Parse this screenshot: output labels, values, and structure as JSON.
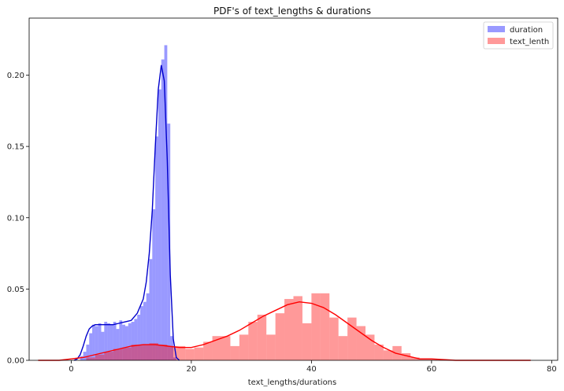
{
  "chart_data": {
    "type": "bar",
    "title": "PDF's of text_lengths & durations",
    "xlabel": "text_lengths/durations",
    "ylabel": "",
    "xlim": [
      -7,
      81
    ],
    "ylim": [
      0,
      0.24
    ],
    "xticks": [
      0,
      20,
      40,
      60,
      80
    ],
    "yticks": [
      0.0,
      0.05,
      0.1,
      0.15,
      0.2
    ],
    "grid": false,
    "legend_position": "top-right",
    "series": [
      {
        "name": "duration",
        "color": "#0000ff",
        "bar_opacity": 0.4,
        "bin_width": 0.5,
        "bins": [
          [
            1.5,
            0.003
          ],
          [
            2.0,
            0.006
          ],
          [
            2.5,
            0.011
          ],
          [
            3.0,
            0.019
          ],
          [
            3.5,
            0.025
          ],
          [
            4.0,
            0.024
          ],
          [
            4.5,
            0.026
          ],
          [
            5.0,
            0.02
          ],
          [
            5.5,
            0.027
          ],
          [
            6.0,
            0.026
          ],
          [
            6.5,
            0.025
          ],
          [
            7.0,
            0.027
          ],
          [
            7.5,
            0.022
          ],
          [
            8.0,
            0.028
          ],
          [
            8.5,
            0.025
          ],
          [
            9.0,
            0.024
          ],
          [
            9.5,
            0.026
          ],
          [
            10.0,
            0.027
          ],
          [
            10.5,
            0.029
          ],
          [
            11.0,
            0.032
          ],
          [
            11.5,
            0.038
          ],
          [
            12.0,
            0.041
          ],
          [
            12.5,
            0.047
          ],
          [
            13.0,
            0.071
          ],
          [
            13.5,
            0.106
          ],
          [
            14.0,
            0.157
          ],
          [
            14.5,
            0.19
          ],
          [
            15.0,
            0.211
          ],
          [
            15.5,
            0.221
          ],
          [
            16.0,
            0.166
          ],
          [
            16.5,
            0.017
          ],
          [
            17.0,
            0.002
          ]
        ],
        "kde": [
          [
            0.5,
            0.0
          ],
          [
            1.0,
            0.001
          ],
          [
            1.5,
            0.004
          ],
          [
            2.0,
            0.01
          ],
          [
            2.5,
            0.017
          ],
          [
            3.0,
            0.022
          ],
          [
            3.5,
            0.024
          ],
          [
            4.0,
            0.025
          ],
          [
            5.0,
            0.025
          ],
          [
            6.0,
            0.025
          ],
          [
            7.0,
            0.025
          ],
          [
            8.0,
            0.026
          ],
          [
            9.0,
            0.027
          ],
          [
            10.0,
            0.028
          ],
          [
            11.0,
            0.033
          ],
          [
            12.0,
            0.043
          ],
          [
            12.5,
            0.055
          ],
          [
            13.0,
            0.075
          ],
          [
            13.5,
            0.105
          ],
          [
            14.0,
            0.15
          ],
          [
            14.5,
            0.19
          ],
          [
            15.0,
            0.207
          ],
          [
            15.5,
            0.196
          ],
          [
            16.0,
            0.14
          ],
          [
            16.5,
            0.06
          ],
          [
            17.0,
            0.015
          ],
          [
            17.5,
            0.002
          ],
          [
            18.0,
            0.0
          ]
        ]
      },
      {
        "name": "text_lenth",
        "color": "#ff0000",
        "bar_opacity": 0.4,
        "bin_width": 1.5,
        "bins": [
          [
            2.5,
            0.002
          ],
          [
            4.0,
            0.004
          ],
          [
            5.5,
            0.006
          ],
          [
            7.0,
            0.008
          ],
          [
            8.5,
            0.009
          ],
          [
            10.0,
            0.011
          ],
          [
            11.5,
            0.011
          ],
          [
            13.0,
            0.012
          ],
          [
            14.5,
            0.011
          ],
          [
            16.0,
            0.01
          ],
          [
            17.5,
            0.01
          ],
          [
            19.0,
            0.008
          ],
          [
            20.5,
            0.009
          ],
          [
            22.0,
            0.013
          ],
          [
            23.5,
            0.017
          ],
          [
            25.0,
            0.017
          ],
          [
            26.5,
            0.01
          ],
          [
            28.0,
            0.018
          ],
          [
            29.5,
            0.027
          ],
          [
            31.0,
            0.032
          ],
          [
            32.5,
            0.018
          ],
          [
            34.0,
            0.033
          ],
          [
            35.5,
            0.043
          ],
          [
            37.0,
            0.045
          ],
          [
            38.5,
            0.026
          ],
          [
            40.0,
            0.047
          ],
          [
            41.5,
            0.047
          ],
          [
            43.0,
            0.03
          ],
          [
            44.5,
            0.017
          ],
          [
            46.0,
            0.03
          ],
          [
            47.5,
            0.024
          ],
          [
            49.0,
            0.018
          ],
          [
            50.5,
            0.011
          ],
          [
            52.0,
            0.007
          ],
          [
            53.5,
            0.01
          ],
          [
            55.0,
            0.005
          ],
          [
            56.5,
            0.002
          ],
          [
            58.0,
            0.001
          ],
          [
            59.5,
            0.001
          ]
        ],
        "kde": [
          [
            -5.5,
            0.0
          ],
          [
            -2.0,
            0.0
          ],
          [
            0.0,
            0.001
          ],
          [
            2.0,
            0.002
          ],
          [
            4.0,
            0.004
          ],
          [
            6.0,
            0.006
          ],
          [
            8.0,
            0.008
          ],
          [
            10.0,
            0.01
          ],
          [
            12.0,
            0.011
          ],
          [
            14.0,
            0.011
          ],
          [
            16.0,
            0.01
          ],
          [
            18.0,
            0.009
          ],
          [
            20.0,
            0.009
          ],
          [
            22.0,
            0.011
          ],
          [
            24.0,
            0.014
          ],
          [
            26.0,
            0.017
          ],
          [
            28.0,
            0.021
          ],
          [
            30.0,
            0.026
          ],
          [
            32.0,
            0.031
          ],
          [
            34.0,
            0.035
          ],
          [
            36.0,
            0.039
          ],
          [
            38.0,
            0.041
          ],
          [
            40.0,
            0.04
          ],
          [
            42.0,
            0.037
          ],
          [
            44.0,
            0.032
          ],
          [
            46.0,
            0.026
          ],
          [
            48.0,
            0.02
          ],
          [
            50.0,
            0.014
          ],
          [
            52.0,
            0.009
          ],
          [
            54.0,
            0.005
          ],
          [
            56.0,
            0.003
          ],
          [
            58.0,
            0.001
          ],
          [
            60.0,
            0.001
          ],
          [
            64.0,
            0.0
          ],
          [
            70.0,
            0.0
          ],
          [
            76.5,
            0.0
          ]
        ]
      }
    ]
  }
}
